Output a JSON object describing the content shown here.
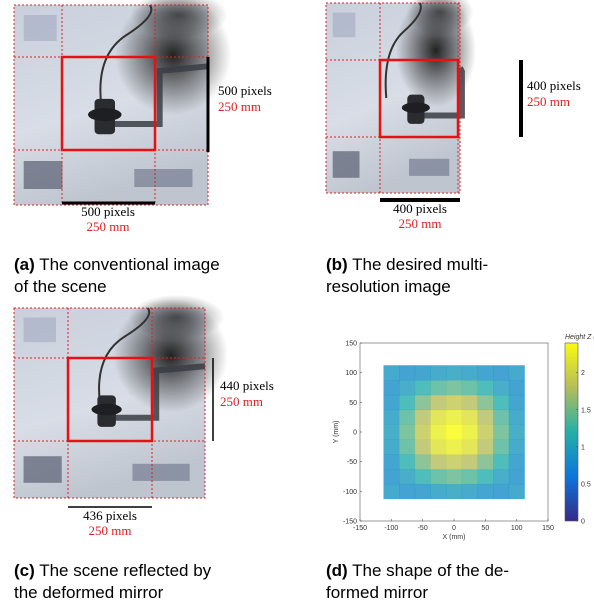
{
  "figures": [
    {
      "label": "(a)",
      "caption": [
        "The conventional image",
        "of the scene"
      ],
      "height_px": "500 pixels",
      "height_mm": "250 mm",
      "width_px": "500 pixels",
      "width_mm": "250 mm"
    },
    {
      "label": "(b)",
      "caption": [
        "The desired multi-",
        "resolution image"
      ],
      "height_px": "400 pixels",
      "height_mm": "250 mm",
      "width_px": "400 pixels",
      "width_mm": "250 mm"
    },
    {
      "label": "(c)",
      "caption": [
        "The scene reflected by",
        "the deformed mirror"
      ],
      "height_px": "440 pixels",
      "height_mm": "250 mm",
      "width_px": "436 pixels",
      "width_mm": "250 mm"
    },
    {
      "label": "(d)",
      "caption": [
        "The shape of the de-",
        "formed mirror"
      ]
    }
  ],
  "chart_data": {
    "type": "heatmap",
    "xlabel": "X (mm)",
    "ylabel": "Y (mm)",
    "colorbar_title": "Height Z (mm)",
    "xlim": [
      -150,
      150
    ],
    "ylim": [
      -150,
      150
    ],
    "xticks": [
      -150,
      -100,
      -50,
      0,
      50,
      100,
      150
    ],
    "yticks": [
      -150,
      -100,
      -50,
      0,
      50,
      100,
      150
    ],
    "clim": [
      0,
      2.4
    ],
    "cticks": [
      0,
      0.5,
      1,
      1.5,
      2
    ],
    "colormap": [
      "#352a87",
      "#0d75dc",
      "#23b0a8",
      "#b5bd5a",
      "#f9fb0e"
    ],
    "x": [
      -100,
      -75,
      -50,
      -25,
      0,
      25,
      50,
      75,
      100
    ],
    "y": [
      -100,
      -75,
      -50,
      -25,
      0,
      25,
      50,
      75,
      100
    ],
    "z": [
      [
        0.9,
        0.83,
        0.85,
        0.94,
        0.99,
        0.94,
        0.85,
        0.83,
        0.9
      ],
      [
        0.83,
        0.98,
        1.16,
        1.36,
        1.44,
        1.36,
        1.16,
        0.98,
        0.83
      ],
      [
        0.85,
        1.16,
        1.52,
        1.8,
        1.9,
        1.8,
        1.52,
        1.16,
        0.85
      ],
      [
        0.94,
        1.36,
        1.8,
        2.14,
        2.26,
        2.14,
        1.8,
        1.36,
        0.94
      ],
      [
        0.99,
        1.44,
        1.9,
        2.26,
        2.4,
        2.26,
        1.9,
        1.44,
        0.99
      ],
      [
        0.94,
        1.36,
        1.8,
        2.14,
        2.26,
        2.14,
        1.8,
        1.36,
        0.94
      ],
      [
        0.85,
        1.16,
        1.52,
        1.8,
        1.9,
        1.8,
        1.52,
        1.16,
        0.85
      ],
      [
        0.83,
        0.98,
        1.16,
        1.36,
        1.44,
        1.36,
        1.16,
        0.98,
        0.83
      ],
      [
        0.9,
        0.83,
        0.85,
        0.94,
        0.99,
        0.94,
        0.85,
        0.83,
        0.9
      ]
    ]
  }
}
